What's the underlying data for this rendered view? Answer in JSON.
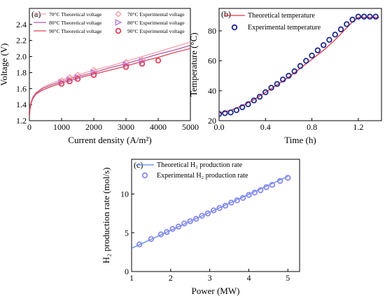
{
  "chart_data": [
    {
      "panel": "(a)",
      "type": "line",
      "xlabel": "Current density (A/m²)",
      "ylabel": "Voltage (V)",
      "xlim": [
        0,
        5000
      ],
      "ylim": [
        1.2,
        2.6
      ],
      "xticks": [
        0,
        1000,
        2000,
        3000,
        4000,
        5000
      ],
      "yticks": [
        1.2,
        1.4,
        1.6,
        1.8,
        2.0,
        2.2,
        2.4
      ],
      "ytick_labels": [
        "1.2",
        "1.4",
        "1.6",
        "1.8",
        "2.0",
        "2.2",
        "2.4"
      ],
      "legend_placement": "top-left",
      "series": [
        {
          "name": "70°C Theoretical voltage",
          "kind": "line",
          "color": "#f2a0a8",
          "x": [
            0,
            20,
            50,
            100,
            200,
            400,
            700,
            1000,
            1500,
            2000,
            2500,
            3000,
            3500,
            4000,
            4500,
            5000
          ],
          "y": [
            1.26,
            1.36,
            1.43,
            1.49,
            1.55,
            1.61,
            1.67,
            1.71,
            1.77,
            1.83,
            1.88,
            1.94,
            2.0,
            2.06,
            2.12,
            2.18
          ]
        },
        {
          "name": "80°C Theoretical voltage",
          "kind": "line",
          "color": "#b55a9c",
          "x": [
            0,
            20,
            50,
            100,
            200,
            400,
            700,
            1000,
            1500,
            2000,
            2500,
            3000,
            3500,
            4000,
            4500,
            5000
          ],
          "y": [
            1.25,
            1.35,
            1.42,
            1.48,
            1.54,
            1.6,
            1.65,
            1.69,
            1.75,
            1.8,
            1.86,
            1.91,
            1.97,
            2.03,
            2.08,
            2.14
          ]
        },
        {
          "name": "90°C Theoretical voltage",
          "kind": "line",
          "color": "#e0445a",
          "x": [
            0,
            20,
            50,
            100,
            200,
            400,
            700,
            1000,
            1500,
            2000,
            2500,
            3000,
            3500,
            4000,
            4500,
            5000
          ],
          "y": [
            1.24,
            1.34,
            1.41,
            1.47,
            1.53,
            1.58,
            1.63,
            1.67,
            1.73,
            1.78,
            1.83,
            1.88,
            1.94,
            1.99,
            2.05,
            2.1
          ]
        },
        {
          "name": "70°C Experimental voltage",
          "kind": "marker",
          "marker": "diamond",
          "color": "#f2a0a8",
          "x": [
            1000,
            1250,
            1500,
            2000,
            3000,
            3500
          ],
          "y": [
            1.7,
            1.74,
            1.77,
            1.83,
            1.93,
            1.96
          ]
        },
        {
          "name": "80°C Experimental voltage",
          "kind": "marker",
          "marker": "triangle-right",
          "color": "#b47ae0",
          "x": [
            1000,
            1250,
            1500,
            2000,
            3000,
            3500
          ],
          "y": [
            1.68,
            1.71,
            1.74,
            1.8,
            1.9,
            1.94
          ]
        },
        {
          "name": "90°C Experimental voltage",
          "kind": "marker",
          "marker": "circle",
          "color": "#e0445a",
          "x": [
            1000,
            1250,
            1500,
            2000,
            3000,
            3500,
            4000
          ],
          "y": [
            1.66,
            1.69,
            1.72,
            1.77,
            1.87,
            1.91,
            1.95
          ]
        }
      ]
    },
    {
      "panel": "(b)",
      "type": "line",
      "xlabel": "Time (h)",
      "ylabel": "Temperature (°C)",
      "xlim": [
        0,
        1.4
      ],
      "ylim": [
        20,
        95
      ],
      "xticks": [
        0.0,
        0.4,
        0.8,
        1.2
      ],
      "xtick_labels": [
        "0.0",
        "0.4",
        "0.8",
        "1.2"
      ],
      "yticks": [
        20,
        40,
        60,
        80
      ],
      "legend_placement": "top-left",
      "series": [
        {
          "name": "Theoretical temperature",
          "kind": "line",
          "color": "#e8324a",
          "x": [
            0,
            0.1,
            0.2,
            0.3,
            0.4,
            0.5,
            0.6,
            0.7,
            0.8,
            0.9,
            1.0,
            1.1,
            1.15,
            1.2,
            1.25,
            1.3,
            1.38
          ],
          "y": [
            25,
            27,
            30,
            34,
            39,
            44,
            49,
            55,
            61,
            67,
            74,
            82,
            86,
            89,
            89,
            89,
            89
          ]
        },
        {
          "name": "Experimental temperature",
          "kind": "marker",
          "marker": "circle",
          "color": "#1f2a8c",
          "x": [
            0,
            0.05,
            0.1,
            0.15,
            0.2,
            0.25,
            0.3,
            0.35,
            0.4,
            0.45,
            0.5,
            0.55,
            0.6,
            0.65,
            0.7,
            0.75,
            0.8,
            0.85,
            0.9,
            0.95,
            1.0,
            1.05,
            1.1,
            1.15,
            1.2,
            1.25,
            1.3,
            1.35
          ],
          "y": [
            24.5,
            25,
            25.5,
            27,
            29,
            31,
            33.5,
            36,
            39,
            42,
            44.5,
            47.5,
            50,
            53,
            56.5,
            60,
            63.5,
            67,
            70.5,
            74,
            77.5,
            81,
            84.5,
            87.5,
            89.5,
            89.5,
            89.5,
            89.5
          ]
        }
      ]
    },
    {
      "panel": "(c)",
      "type": "line",
      "xlabel": "Power (MW)",
      "ylabel": "H₂ production rate (mol/s)",
      "xlim": [
        1,
        5.3
      ],
      "ylim": [
        0,
        14.5
      ],
      "xticks": [
        1,
        2,
        3,
        4,
        5
      ],
      "yticks": [
        0,
        5,
        10
      ],
      "legend_placement": "top-left",
      "series": [
        {
          "name": "Theoretical H₂ production rate",
          "kind": "line",
          "color": "#5b8be8",
          "x": [
            1.0,
            5.0
          ],
          "y": [
            3.0,
            12.3
          ]
        },
        {
          "name": "Experimental H₂ production rate",
          "kind": "marker",
          "marker": "circle",
          "color": "#8a88f0",
          "x": [
            1.2,
            1.5,
            1.75,
            1.9,
            2.05,
            2.2,
            2.35,
            2.5,
            2.65,
            2.8,
            2.95,
            3.1,
            3.25,
            3.4,
            3.55,
            3.7,
            3.85,
            4.0,
            4.15,
            4.3,
            4.45,
            4.6,
            4.8,
            5.0
          ],
          "y": [
            3.5,
            4.2,
            4.8,
            5.1,
            5.5,
            5.8,
            6.2,
            6.5,
            6.8,
            7.2,
            7.5,
            7.9,
            8.2,
            8.5,
            8.9,
            9.2,
            9.5,
            9.9,
            10.2,
            10.5,
            10.9,
            11.2,
            11.7,
            12.1
          ]
        }
      ]
    }
  ]
}
